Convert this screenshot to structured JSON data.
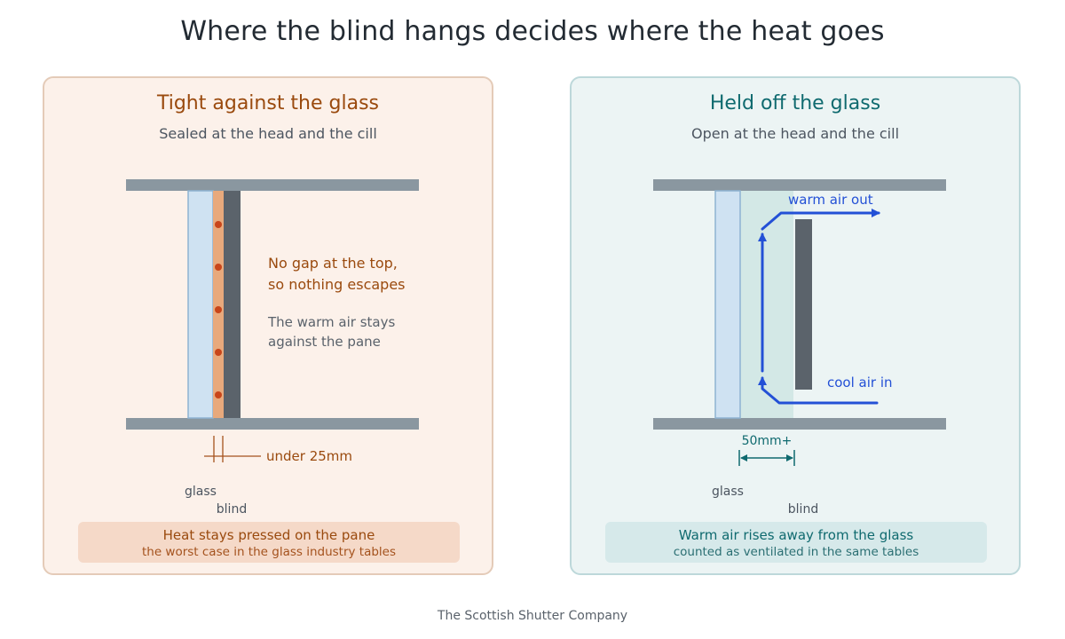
{
  "title": "Where the blind hangs decides where the heat goes",
  "left_panel": {
    "heading": "Tight against the glass",
    "subheading": "Sealed at the head and the cill",
    "callout_line1": "No gap at the top,",
    "callout_line2": "so nothing escapes",
    "note_line1": "The warm air stays",
    "note_line2": "against the pane",
    "gap_label": "under 25mm",
    "glass_label": "glass",
    "blind_label": "blind",
    "summary_main": "Heat stays pressed on the pane",
    "summary_sub": "the worst case in the glass industry tables"
  },
  "right_panel": {
    "heading": "Held off the glass",
    "subheading": "Open at the head and the cill",
    "warm_label": "warm air out",
    "cool_label": "cool air in",
    "gap_label": "50mm+",
    "glass_label": "glass",
    "blind_label": "blind",
    "summary_main": "Warm air rises away from the glass",
    "summary_sub": "counted as ventilated in the same tables"
  },
  "footer": "The Scottish Shutter Company",
  "colors": {
    "left_accent": "#9a4a0e",
    "right_accent": "#0f6a6f",
    "airflow": "#2350d6",
    "trapped_heat": "#c8451a"
  }
}
